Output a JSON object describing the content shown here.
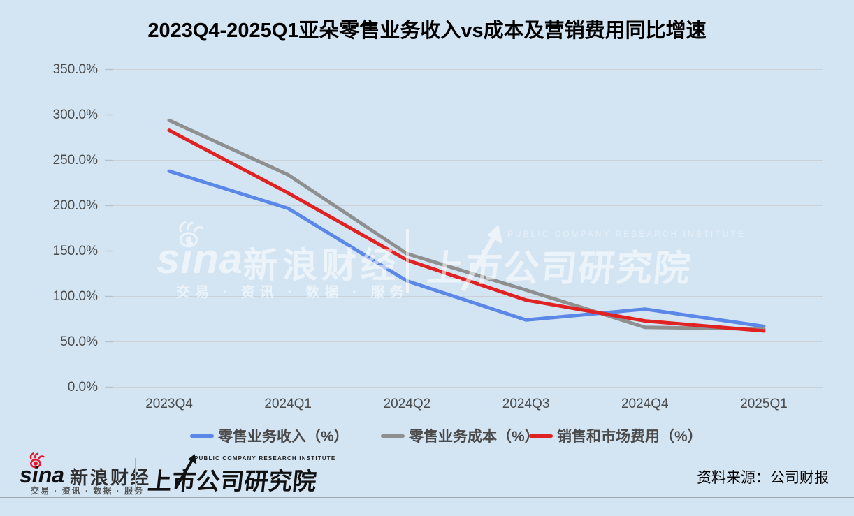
{
  "chart_data": {
    "type": "line",
    "title": "2023Q4-2025Q1亚朵零售业务收入vs成本及营销费用同比增速",
    "categories": [
      "2023Q4",
      "2024Q1",
      "2024Q2",
      "2024Q3",
      "2024Q4",
      "2025Q1"
    ],
    "series": [
      {
        "name": "零售业务收入（%）",
        "color": "#5b87e8",
        "values": [
          238,
          197,
          117,
          74,
          86,
          67
        ]
      },
      {
        "name": "零售业务成本（%）",
        "color": "#8f8f8f",
        "values": [
          294,
          234,
          147,
          107,
          66,
          64
        ]
      },
      {
        "name": "销售和市场费用（%）",
        "color": "#e02222",
        "values": [
          283,
          214,
          140,
          96,
          73,
          62
        ]
      }
    ],
    "xlabel": "",
    "ylabel": "",
    "ylim": [
      0,
      350
    ],
    "ytick_step": 50,
    "yticks": [
      "350.0%",
      "300.0%",
      "250.0%",
      "200.0%",
      "150.0%",
      "100.0%",
      "50.0%",
      "0.0%"
    ],
    "grid": true,
    "legend_position": "bottom",
    "background_color": "#d3e5f3",
    "gridline_color": "#c9d0d6"
  },
  "watermark": {
    "brand_latin": "sina",
    "brand_cn": "新浪财经",
    "tagline": "交易 · 资讯 · 数据 · 服务",
    "institute_cn": "上市公司研究院",
    "institute_en": "PUBLIC COMPANY RESEARCH INSTITUTE"
  },
  "footer": {
    "brand_latin": "sina",
    "brand_cn": "新浪财经",
    "tagline": "交易 · 资讯 · 数据 · 服务",
    "institute_cn": "上市公司研究院",
    "institute_en": "PUBLIC COMPANY RESEARCH INSTITUTE",
    "source": "资料来源：公司财报",
    "sina_red": "#e6162d"
  }
}
